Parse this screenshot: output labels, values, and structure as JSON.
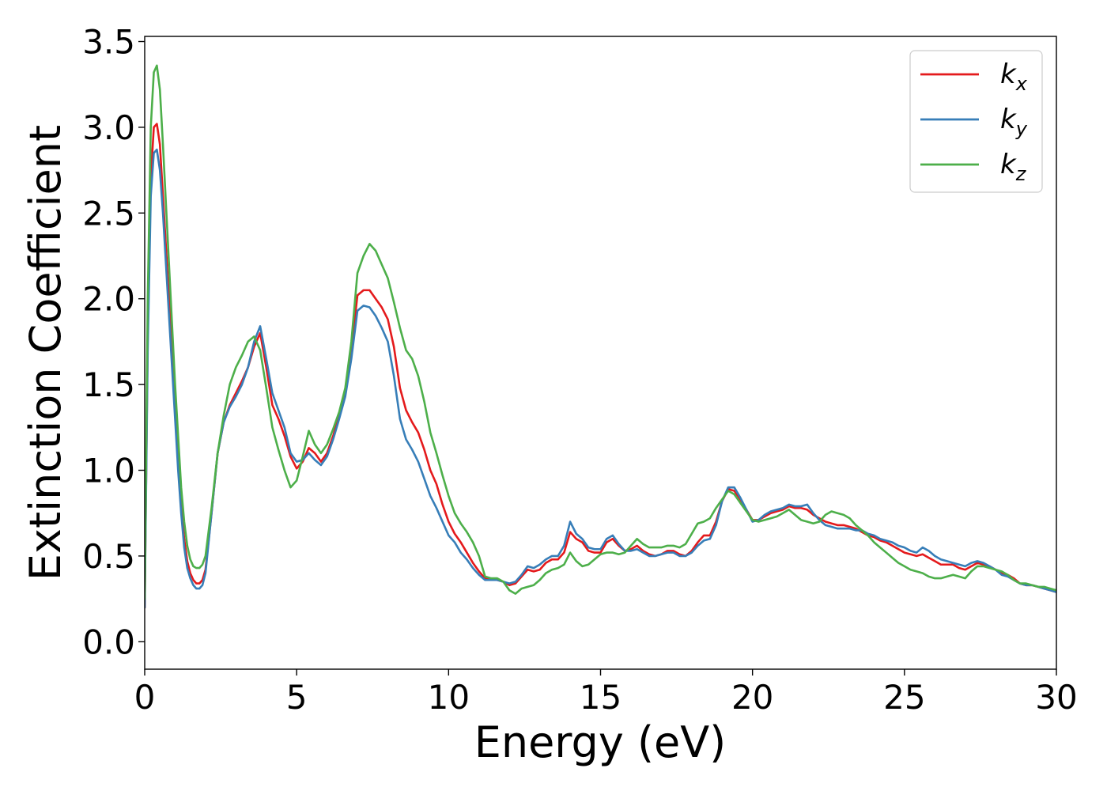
{
  "chart_data": {
    "type": "line",
    "title": "",
    "xlabel": "Energy (eV)",
    "ylabel": "Extinction Coefficient",
    "xlim": [
      0,
      30
    ],
    "ylim": [
      -0.16,
      3.53
    ],
    "xticks": [
      0,
      5,
      10,
      15,
      20,
      25,
      30
    ],
    "xtick_labels": [
      "0",
      "5",
      "10",
      "15",
      "20",
      "25",
      "30"
    ],
    "yticks": [
      0.0,
      0.5,
      1.0,
      1.5,
      2.0,
      2.5,
      3.0,
      3.5
    ],
    "ytick_labels": [
      "0.0",
      "0.5",
      "1.0",
      "1.5",
      "2.0",
      "2.5",
      "3.0",
      "3.5"
    ],
    "grid": false,
    "legend_position": "top-right",
    "series": [
      {
        "name": "k_x",
        "legend_base": "k",
        "legend_sub": "x",
        "color": "#e41a1c",
        "x": [
          0,
          0.1,
          0.2,
          0.3,
          0.4,
          0.5,
          0.6,
          0.7,
          0.8,
          0.9,
          1.0,
          1.1,
          1.2,
          1.3,
          1.4,
          1.5,
          1.6,
          1.7,
          1.8,
          1.9,
          2.0,
          2.2,
          2.4,
          2.6,
          2.8,
          3.0,
          3.2,
          3.4,
          3.6,
          3.8,
          4.0,
          4.2,
          4.4,
          4.6,
          4.8,
          5.0,
          5.2,
          5.4,
          5.6,
          5.8,
          6.0,
          6.2,
          6.4,
          6.6,
          6.8,
          7.0,
          7.2,
          7.4,
          7.6,
          7.8,
          8.0,
          8.2,
          8.4,
          8.6,
          8.8,
          9.0,
          9.2,
          9.4,
          9.6,
          9.8,
          10.0,
          10.2,
          10.4,
          10.6,
          10.8,
          11.0,
          11.2,
          11.4,
          11.6,
          11.8,
          12.0,
          12.2,
          12.4,
          12.6,
          12.8,
          13.0,
          13.2,
          13.4,
          13.6,
          13.8,
          14.0,
          14.2,
          14.4,
          14.6,
          14.8,
          15.0,
          15.2,
          15.4,
          15.6,
          15.8,
          16.0,
          16.2,
          16.4,
          16.6,
          16.8,
          17.0,
          17.2,
          17.4,
          17.6,
          17.8,
          18.0,
          18.2,
          18.4,
          18.6,
          18.8,
          19.0,
          19.2,
          19.4,
          19.6,
          19.8,
          20.0,
          20.2,
          20.4,
          20.6,
          20.8,
          21.0,
          21.2,
          21.4,
          21.6,
          21.8,
          22.0,
          22.2,
          22.4,
          22.6,
          22.8,
          23.0,
          23.2,
          23.4,
          23.6,
          23.8,
          24.0,
          24.2,
          24.4,
          24.6,
          24.8,
          25.0,
          25.2,
          25.4,
          25.6,
          25.8,
          26.0,
          26.2,
          26.4,
          26.6,
          26.8,
          27.0,
          27.2,
          27.4,
          27.6,
          27.8,
          28.0,
          28.2,
          28.4,
          28.6,
          28.8,
          29.0,
          29.2,
          29.4,
          29.6,
          29.8,
          30.0
        ],
        "y": [
          0.2,
          1.8,
          2.7,
          3.0,
          3.02,
          2.9,
          2.6,
          2.3,
          2.0,
          1.7,
          1.4,
          1.1,
          0.8,
          0.6,
          0.47,
          0.4,
          0.36,
          0.34,
          0.34,
          0.36,
          0.42,
          0.75,
          1.1,
          1.28,
          1.38,
          1.45,
          1.52,
          1.6,
          1.72,
          1.8,
          1.6,
          1.38,
          1.3,
          1.2,
          1.08,
          1.01,
          1.05,
          1.13,
          1.1,
          1.05,
          1.1,
          1.2,
          1.32,
          1.45,
          1.7,
          2.02,
          2.05,
          2.05,
          2.0,
          1.95,
          1.88,
          1.72,
          1.48,
          1.35,
          1.28,
          1.22,
          1.12,
          1.0,
          0.92,
          0.8,
          0.7,
          0.63,
          0.58,
          0.52,
          0.46,
          0.41,
          0.37,
          0.36,
          0.36,
          0.35,
          0.33,
          0.34,
          0.38,
          0.42,
          0.41,
          0.42,
          0.46,
          0.48,
          0.48,
          0.52,
          0.64,
          0.6,
          0.58,
          0.53,
          0.52,
          0.52,
          0.58,
          0.6,
          0.56,
          0.53,
          0.54,
          0.56,
          0.53,
          0.51,
          0.5,
          0.51,
          0.53,
          0.53,
          0.51,
          0.5,
          0.53,
          0.58,
          0.62,
          0.62,
          0.7,
          0.82,
          0.89,
          0.88,
          0.83,
          0.77,
          0.71,
          0.71,
          0.73,
          0.75,
          0.76,
          0.77,
          0.79,
          0.78,
          0.78,
          0.77,
          0.74,
          0.72,
          0.7,
          0.69,
          0.68,
          0.68,
          0.67,
          0.66,
          0.64,
          0.62,
          0.61,
          0.59,
          0.58,
          0.56,
          0.54,
          0.52,
          0.51,
          0.5,
          0.51,
          0.49,
          0.47,
          0.45,
          0.45,
          0.45,
          0.43,
          0.42,
          0.44,
          0.46,
          0.45,
          0.44,
          0.42,
          0.4,
          0.39,
          0.37,
          0.34,
          0.33,
          0.33,
          0.32,
          0.31,
          0.3,
          0.29
        ]
      },
      {
        "name": "k_y",
        "legend_base": "k",
        "legend_sub": "y",
        "color": "#377eb8",
        "x": [
          0,
          0.1,
          0.2,
          0.3,
          0.4,
          0.5,
          0.6,
          0.7,
          0.8,
          0.9,
          1.0,
          1.1,
          1.2,
          1.3,
          1.4,
          1.5,
          1.6,
          1.7,
          1.8,
          1.9,
          2.0,
          2.2,
          2.4,
          2.6,
          2.8,
          3.0,
          3.2,
          3.4,
          3.6,
          3.8,
          4.0,
          4.2,
          4.4,
          4.6,
          4.8,
          5.0,
          5.2,
          5.4,
          5.6,
          5.8,
          6.0,
          6.2,
          6.4,
          6.6,
          6.8,
          7.0,
          7.2,
          7.4,
          7.6,
          7.8,
          8.0,
          8.2,
          8.4,
          8.6,
          8.8,
          9.0,
          9.2,
          9.4,
          9.6,
          9.8,
          10.0,
          10.2,
          10.4,
          10.6,
          10.8,
          11.0,
          11.2,
          11.4,
          11.6,
          11.8,
          12.0,
          12.2,
          12.4,
          12.6,
          12.8,
          13.0,
          13.2,
          13.4,
          13.6,
          13.8,
          14.0,
          14.2,
          14.4,
          14.6,
          14.8,
          15.0,
          15.2,
          15.4,
          15.6,
          15.8,
          16.0,
          16.2,
          16.4,
          16.6,
          16.8,
          17.0,
          17.2,
          17.4,
          17.6,
          17.8,
          18.0,
          18.2,
          18.4,
          18.6,
          18.8,
          19.0,
          19.2,
          19.4,
          19.6,
          19.8,
          20.0,
          20.2,
          20.4,
          20.6,
          20.8,
          21.0,
          21.2,
          21.4,
          21.6,
          21.8,
          22.0,
          22.2,
          22.4,
          22.6,
          22.8,
          23.0,
          23.2,
          23.4,
          23.6,
          23.8,
          24.0,
          24.2,
          24.4,
          24.6,
          24.8,
          25.0,
          25.2,
          25.4,
          25.6,
          25.8,
          26.0,
          26.2,
          26.4,
          26.6,
          26.8,
          27.0,
          27.2,
          27.4,
          27.6,
          27.8,
          28.0,
          28.2,
          28.4,
          28.6,
          28.8,
          29.0,
          29.2,
          29.4,
          29.6,
          29.8,
          30.0
        ],
        "y": [
          0.2,
          1.7,
          2.6,
          2.85,
          2.87,
          2.75,
          2.5,
          2.2,
          1.9,
          1.6,
          1.3,
          1.0,
          0.75,
          0.55,
          0.43,
          0.37,
          0.33,
          0.31,
          0.31,
          0.33,
          0.4,
          0.75,
          1.1,
          1.28,
          1.37,
          1.43,
          1.5,
          1.6,
          1.75,
          1.84,
          1.65,
          1.45,
          1.35,
          1.25,
          1.1,
          1.05,
          1.06,
          1.1,
          1.06,
          1.03,
          1.08,
          1.18,
          1.3,
          1.43,
          1.65,
          1.93,
          1.96,
          1.95,
          1.9,
          1.83,
          1.75,
          1.55,
          1.3,
          1.18,
          1.12,
          1.05,
          0.95,
          0.85,
          0.78,
          0.7,
          0.62,
          0.58,
          0.52,
          0.48,
          0.43,
          0.39,
          0.36,
          0.36,
          0.36,
          0.35,
          0.34,
          0.35,
          0.39,
          0.44,
          0.43,
          0.45,
          0.48,
          0.5,
          0.5,
          0.56,
          0.7,
          0.63,
          0.6,
          0.55,
          0.54,
          0.54,
          0.6,
          0.62,
          0.57,
          0.53,
          0.53,
          0.54,
          0.52,
          0.5,
          0.5,
          0.51,
          0.52,
          0.52,
          0.5,
          0.5,
          0.52,
          0.56,
          0.59,
          0.6,
          0.68,
          0.82,
          0.9,
          0.9,
          0.84,
          0.77,
          0.7,
          0.71,
          0.74,
          0.76,
          0.77,
          0.78,
          0.8,
          0.79,
          0.79,
          0.8,
          0.75,
          0.71,
          0.68,
          0.67,
          0.66,
          0.66,
          0.66,
          0.65,
          0.65,
          0.63,
          0.62,
          0.6,
          0.59,
          0.58,
          0.56,
          0.55,
          0.53,
          0.52,
          0.55,
          0.53,
          0.5,
          0.48,
          0.47,
          0.46,
          0.45,
          0.44,
          0.46,
          0.47,
          0.46,
          0.44,
          0.42,
          0.39,
          0.38,
          0.36,
          0.34,
          0.33,
          0.33,
          0.32,
          0.31,
          0.3,
          0.29
        ]
      },
      {
        "name": "k_z",
        "legend_base": "k",
        "legend_sub": "z",
        "color": "#4daf4a",
        "x": [
          0,
          0.1,
          0.2,
          0.3,
          0.4,
          0.5,
          0.6,
          0.7,
          0.8,
          0.9,
          1.0,
          1.1,
          1.2,
          1.3,
          1.4,
          1.5,
          1.6,
          1.7,
          1.8,
          1.9,
          2.0,
          2.2,
          2.4,
          2.6,
          2.8,
          3.0,
          3.2,
          3.4,
          3.6,
          3.8,
          4.0,
          4.2,
          4.4,
          4.6,
          4.8,
          5.0,
          5.2,
          5.4,
          5.6,
          5.8,
          6.0,
          6.2,
          6.4,
          6.6,
          6.8,
          7.0,
          7.2,
          7.4,
          7.6,
          7.8,
          8.0,
          8.2,
          8.4,
          8.6,
          8.8,
          9.0,
          9.2,
          9.4,
          9.6,
          9.8,
          10.0,
          10.2,
          10.4,
          10.6,
          10.8,
          11.0,
          11.2,
          11.4,
          11.6,
          11.8,
          12.0,
          12.2,
          12.4,
          12.6,
          12.8,
          13.0,
          13.2,
          13.4,
          13.6,
          13.8,
          14.0,
          14.2,
          14.4,
          14.6,
          14.8,
          15.0,
          15.2,
          15.4,
          15.6,
          15.8,
          16.0,
          16.2,
          16.4,
          16.6,
          16.8,
          17.0,
          17.2,
          17.4,
          17.6,
          17.8,
          18.0,
          18.2,
          18.4,
          18.6,
          18.8,
          19.0,
          19.2,
          19.4,
          19.6,
          19.8,
          20.0,
          20.2,
          20.4,
          20.6,
          20.8,
          21.0,
          21.2,
          21.4,
          21.6,
          21.8,
          22.0,
          22.2,
          22.4,
          22.6,
          22.8,
          23.0,
          23.2,
          23.4,
          23.6,
          23.8,
          24.0,
          24.2,
          24.4,
          24.6,
          24.8,
          25.0,
          25.2,
          25.4,
          25.6,
          25.8,
          26.0,
          26.2,
          26.4,
          26.6,
          26.8,
          27.0,
          27.2,
          27.4,
          27.6,
          27.8,
          28.0,
          28.2,
          28.4,
          28.6,
          28.8,
          29.0,
          29.2,
          29.4,
          29.6,
          29.8,
          30.0
        ],
        "y": [
          0.25,
          2.0,
          3.0,
          3.32,
          3.36,
          3.22,
          2.9,
          2.55,
          2.2,
          1.85,
          1.5,
          1.2,
          0.9,
          0.7,
          0.56,
          0.48,
          0.44,
          0.43,
          0.43,
          0.45,
          0.5,
          0.78,
          1.1,
          1.32,
          1.5,
          1.6,
          1.67,
          1.75,
          1.78,
          1.7,
          1.48,
          1.25,
          1.12,
          1.0,
          0.9,
          0.94,
          1.08,
          1.23,
          1.15,
          1.1,
          1.15,
          1.24,
          1.34,
          1.48,
          1.75,
          2.15,
          2.25,
          2.32,
          2.28,
          2.2,
          2.12,
          1.98,
          1.83,
          1.7,
          1.65,
          1.55,
          1.4,
          1.22,
          1.1,
          0.97,
          0.85,
          0.75,
          0.69,
          0.64,
          0.58,
          0.5,
          0.38,
          0.37,
          0.37,
          0.35,
          0.3,
          0.28,
          0.31,
          0.32,
          0.33,
          0.36,
          0.4,
          0.42,
          0.43,
          0.45,
          0.52,
          0.47,
          0.44,
          0.45,
          0.48,
          0.51,
          0.52,
          0.52,
          0.51,
          0.52,
          0.56,
          0.6,
          0.57,
          0.55,
          0.55,
          0.55,
          0.56,
          0.56,
          0.55,
          0.57,
          0.63,
          0.69,
          0.7,
          0.72,
          0.78,
          0.83,
          0.88,
          0.86,
          0.81,
          0.76,
          0.71,
          0.7,
          0.71,
          0.72,
          0.73,
          0.75,
          0.77,
          0.74,
          0.71,
          0.7,
          0.69,
          0.7,
          0.74,
          0.76,
          0.75,
          0.74,
          0.72,
          0.68,
          0.65,
          0.62,
          0.58,
          0.55,
          0.52,
          0.49,
          0.46,
          0.44,
          0.42,
          0.41,
          0.4,
          0.38,
          0.37,
          0.37,
          0.38,
          0.39,
          0.38,
          0.37,
          0.41,
          0.44,
          0.44,
          0.43,
          0.42,
          0.41,
          0.39,
          0.36,
          0.34,
          0.34,
          0.33,
          0.32,
          0.32,
          0.31,
          0.3
        ]
      }
    ]
  }
}
